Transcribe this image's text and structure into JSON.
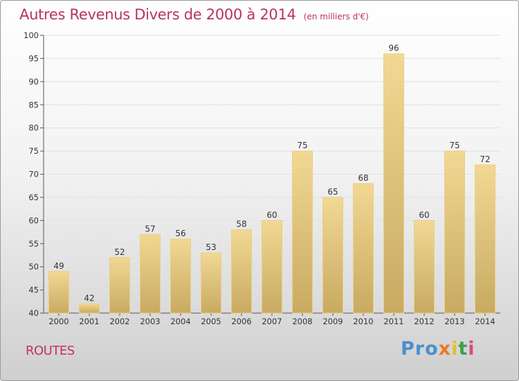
{
  "header": {
    "title": "Autres Revenus Divers de 2000 à 2014",
    "subtitle": "(en milliers d'€)"
  },
  "footer": {
    "label": "ROUTES",
    "logo": {
      "p1": "Pro",
      "p2": "x",
      "p3": "i",
      "p4": "t",
      "p5": "i"
    }
  },
  "colors": {
    "title": "#b8345a",
    "bar_top": "#f2d893",
    "bar_bottom": "#c8aa62",
    "grid": "#e0e0e0"
  },
  "chart_data": {
    "type": "bar",
    "title": "Autres Revenus Divers de 2000 à 2014",
    "subtitle": "(en milliers d'€)",
    "xlabel": "",
    "ylabel": "",
    "ylim": [
      40,
      100
    ],
    "yticks": [
      40,
      45,
      50,
      55,
      60,
      65,
      70,
      75,
      80,
      85,
      90,
      95,
      100
    ],
    "grid": true,
    "categories": [
      "2000",
      "2001",
      "2002",
      "2003",
      "2004",
      "2005",
      "2006",
      "2007",
      "2008",
      "2009",
      "2010",
      "2011",
      "2012",
      "2013",
      "2014"
    ],
    "values": [
      49,
      42,
      52,
      57,
      56,
      53,
      58,
      60,
      75,
      65,
      68,
      96,
      60,
      75,
      72
    ],
    "data_labels": [
      "49",
      "42",
      "52",
      "57",
      "56",
      "53",
      "58",
      "60",
      "75",
      "65",
      "68",
      "96",
      "60",
      "75",
      "72"
    ]
  }
}
